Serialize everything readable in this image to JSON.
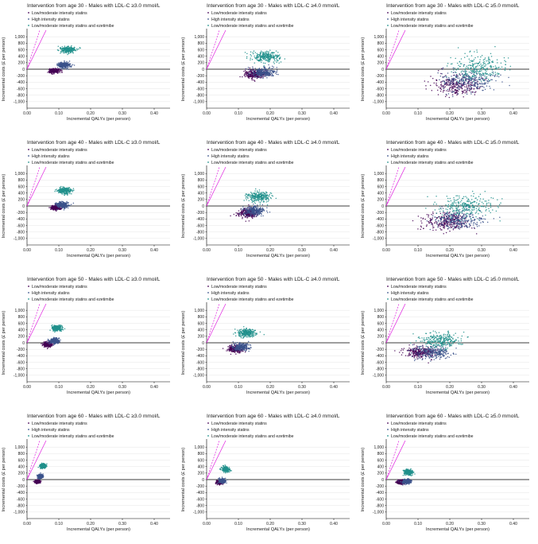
{
  "colors": {
    "low_moderate": "#440154",
    "high": "#3b528b",
    "ezetimibe": "#21918c",
    "threshold": "#e01ee0",
    "axis": "#000000",
    "grid": "#e6e6e6"
  },
  "shared": {
    "xlabel": "Incremental QALYs (per person)",
    "ylabel": "Incremental costs (£ per person)",
    "xlim": [
      0,
      0.45
    ],
    "ylim": [
      -1200,
      1200
    ],
    "x_ticks": [
      "0.00",
      "0.10",
      "0.20",
      "0.30",
      "0.40"
    ],
    "x_tick_values": [
      0,
      0.1,
      0.2,
      0.3,
      0.4
    ],
    "y_ticks": [
      "1,000",
      "800",
      "600",
      "400",
      "200",
      "0",
      "-200",
      "-400",
      "-600",
      "-800",
      "-1,000"
    ],
    "y_tick_values": [
      1000,
      800,
      600,
      400,
      200,
      0,
      -200,
      -400,
      -600,
      -800,
      -1000
    ],
    "legend_position": "top-left",
    "legend": [
      "Low/moderate intensity statins",
      "High intensity statins",
      "Low/moderate intensity statins and ezetimibe"
    ],
    "threshold_lines": [
      {
        "name": "£20,000 per QALY",
        "slope": 20000,
        "style": "solid"
      },
      {
        "name": "£30,000 per QALY",
        "slope": 30000,
        "style": "dashed"
      }
    ]
  },
  "chart_data": [
    {
      "type": "scatter",
      "title": "Intervention from age 30 - Males with LDL-C ≥3.0 mmol/L",
      "series": [
        {
          "name": "Low/moderate intensity statins",
          "center": [
            0.085,
            -50
          ],
          "spread": [
            0.008,
            35
          ]
        },
        {
          "name": "High intensity statins",
          "center": [
            0.115,
            130
          ],
          "spread": [
            0.01,
            45
          ]
        },
        {
          "name": "Low/moderate intensity statins and ezetimibe",
          "center": [
            0.13,
            600
          ],
          "spread": [
            0.012,
            50
          ]
        }
      ]
    },
    {
      "type": "scatter",
      "title": "Intervention from age 30 - Males with LDL-C ≥4.0 mmol/L",
      "series": [
        {
          "name": "Low/moderate intensity statins",
          "center": [
            0.15,
            -150
          ],
          "spread": [
            0.018,
            70
          ]
        },
        {
          "name": "High intensity statins",
          "center": [
            0.18,
            -100
          ],
          "spread": [
            0.02,
            70
          ]
        },
        {
          "name": "Low/moderate intensity statins and ezetimibe",
          "center": [
            0.19,
            380
          ],
          "spread": [
            0.022,
            85
          ]
        }
      ]
    },
    {
      "type": "scatter",
      "title": "Intervention from age 30 - Males with LDL-C ≥5.0 mmol/L",
      "series": [
        {
          "name": "Low/moderate intensity statins",
          "center": [
            0.22,
            -500
          ],
          "spread": [
            0.04,
            160
          ]
        },
        {
          "name": "High intensity statins",
          "center": [
            0.26,
            -350
          ],
          "spread": [
            0.045,
            170
          ]
        },
        {
          "name": "Low/moderate intensity statins and ezetimibe",
          "center": [
            0.29,
            50
          ],
          "spread": [
            0.045,
            190
          ]
        }
      ]
    },
    {
      "type": "scatter",
      "title": "Intervention from age 40 - Males with LDL-C ≥3.0 mmol/L",
      "series": [
        {
          "name": "Low/moderate intensity statins",
          "center": [
            0.09,
            -50
          ],
          "spread": [
            0.008,
            35
          ]
        },
        {
          "name": "High intensity statins",
          "center": [
            0.11,
            30
          ],
          "spread": [
            0.01,
            45
          ]
        },
        {
          "name": "Low/moderate intensity statins and ezetimibe",
          "center": [
            0.12,
            480
          ],
          "spread": [
            0.011,
            50
          ]
        }
      ]
    },
    {
      "type": "scatter",
      "title": "Intervention from age 40 - Males with LDL-C ≥4.0 mmol/L",
      "series": [
        {
          "name": "Low/moderate intensity statins",
          "center": [
            0.13,
            -220
          ],
          "spread": [
            0.015,
            70
          ]
        },
        {
          "name": "High intensity statins",
          "center": [
            0.15,
            -150
          ],
          "spread": [
            0.017,
            70
          ]
        },
        {
          "name": "Low/moderate intensity statins and ezetimibe",
          "center": [
            0.165,
            290
          ],
          "spread": [
            0.018,
            80
          ]
        }
      ]
    },
    {
      "type": "scatter",
      "title": "Intervention from age 40 - Males with LDL-C ≥5.0 mmol/L",
      "series": [
        {
          "name": "Low/moderate intensity statins",
          "center": [
            0.19,
            -480
          ],
          "spread": [
            0.04,
            140
          ]
        },
        {
          "name": "High intensity statins",
          "center": [
            0.23,
            -430
          ],
          "spread": [
            0.04,
            150
          ]
        },
        {
          "name": "Low/moderate intensity statins and ezetimibe",
          "center": [
            0.25,
            0
          ],
          "spread": [
            0.045,
            170
          ]
        }
      ]
    },
    {
      "type": "scatter",
      "title": "Intervention from age 50 - Males with LDL-C ≥3.0 mmol/L",
      "series": [
        {
          "name": "Low/moderate intensity statins",
          "center": [
            0.065,
            -50
          ],
          "spread": [
            0.007,
            35
          ]
        },
        {
          "name": "High intensity statins",
          "center": [
            0.085,
            60
          ],
          "spread": [
            0.008,
            40
          ]
        },
        {
          "name": "Low/moderate intensity statins and ezetimibe",
          "center": [
            0.095,
            450
          ],
          "spread": [
            0.009,
            45
          ]
        }
      ]
    },
    {
      "type": "scatter",
      "title": "Intervention from age 50 - Males with LDL-C ≥4.0 mmol/L",
      "series": [
        {
          "name": "Low/moderate intensity statins",
          "center": [
            0.09,
            -180
          ],
          "spread": [
            0.012,
            55
          ]
        },
        {
          "name": "High intensity statins",
          "center": [
            0.11,
            -130
          ],
          "spread": [
            0.013,
            55
          ]
        },
        {
          "name": "Low/moderate intensity statins and ezetimibe",
          "center": [
            0.125,
            300
          ],
          "spread": [
            0.014,
            65
          ]
        }
      ]
    },
    {
      "type": "scatter",
      "title": "Intervention from age 50 - Males with LDL-C ≥5.0 mmol/L",
      "series": [
        {
          "name": "Low/moderate intensity statins",
          "center": [
            0.11,
            -300
          ],
          "spread": [
            0.025,
            90
          ]
        },
        {
          "name": "High intensity statins",
          "center": [
            0.15,
            -300
          ],
          "spread": [
            0.03,
            100
          ]
        },
        {
          "name": "Low/moderate intensity statins and ezetimibe",
          "center": [
            0.17,
            70
          ],
          "spread": [
            0.03,
            120
          ]
        }
      ]
    },
    {
      "type": "scatter",
      "title": "Intervention from age 60 - Males with LDL-C ≥3.0 mmol/L",
      "series": [
        {
          "name": "Low/moderate intensity statins",
          "center": [
            0.032,
            -60
          ],
          "spread": [
            0.004,
            25
          ]
        },
        {
          "name": "High intensity statins",
          "center": [
            0.042,
            100
          ],
          "spread": [
            0.004,
            30
          ]
        },
        {
          "name": "Low/moderate intensity statins and ezetimibe",
          "center": [
            0.05,
            420
          ],
          "spread": [
            0.005,
            35
          ]
        }
      ]
    },
    {
      "type": "scatter",
      "title": "Intervention from age 60 - Males with LDL-C ≥4.0 mmol/L",
      "series": [
        {
          "name": "Low/moderate intensity statins",
          "center": [
            0.04,
            -80
          ],
          "spread": [
            0.005,
            30
          ]
        },
        {
          "name": "High intensity statins",
          "center": [
            0.05,
            -40
          ],
          "spread": [
            0.005,
            35
          ]
        },
        {
          "name": "Low/moderate intensity statins and ezetimibe",
          "center": [
            0.06,
            320
          ],
          "spread": [
            0.006,
            40
          ]
        }
      ]
    },
    {
      "type": "scatter",
      "title": "Intervention from age 60 - Males with LDL-C ≥5.0 mmol/L",
      "series": [
        {
          "name": "Low/moderate intensity statins",
          "center": [
            0.045,
            -80
          ],
          "spread": [
            0.006,
            30
          ]
        },
        {
          "name": "High intensity statins",
          "center": [
            0.065,
            -60
          ],
          "spread": [
            0.007,
            35
          ]
        },
        {
          "name": "Low/moderate intensity statins and ezetimibe",
          "center": [
            0.07,
            230
          ],
          "spread": [
            0.007,
            40
          ]
        }
      ]
    }
  ]
}
